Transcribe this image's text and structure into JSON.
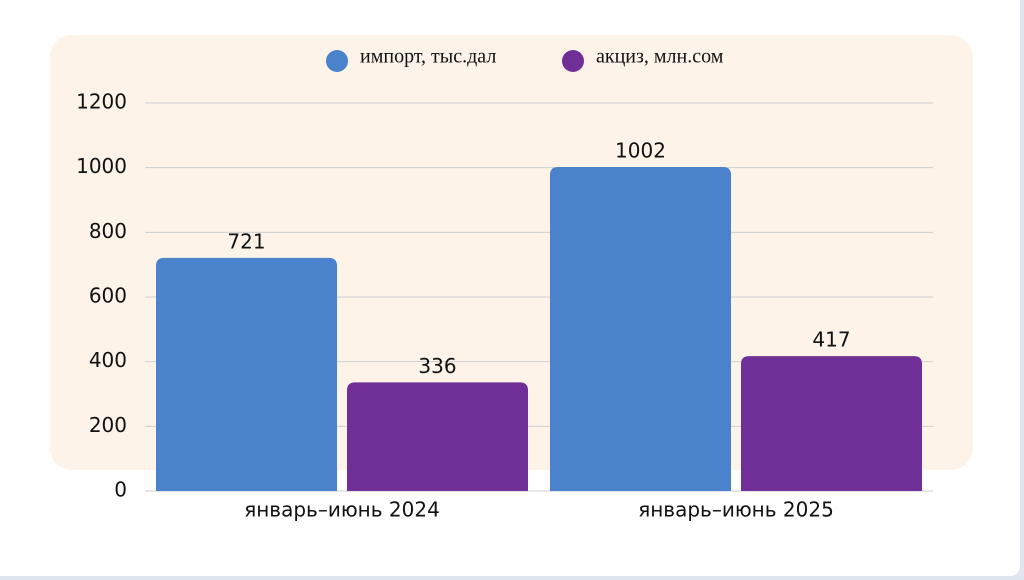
{
  "chart_data": {
    "type": "bar",
    "categories": [
      "январь–июнь 2024",
      "январь–июнь 2025"
    ],
    "series": [
      {
        "name": "импорт, тыс.дал",
        "color": "#4a82cc",
        "values": [
          721,
          1002
        ]
      },
      {
        "name": "акциз, млн.сом",
        "color": "#6f2f96",
        "values": [
          336,
          417
        ]
      }
    ],
    "ylim": [
      0,
      1200
    ],
    "yticks": [
      0,
      200,
      400,
      600,
      800,
      1000,
      1200
    ],
    "grid": true,
    "legend": "top"
  }
}
